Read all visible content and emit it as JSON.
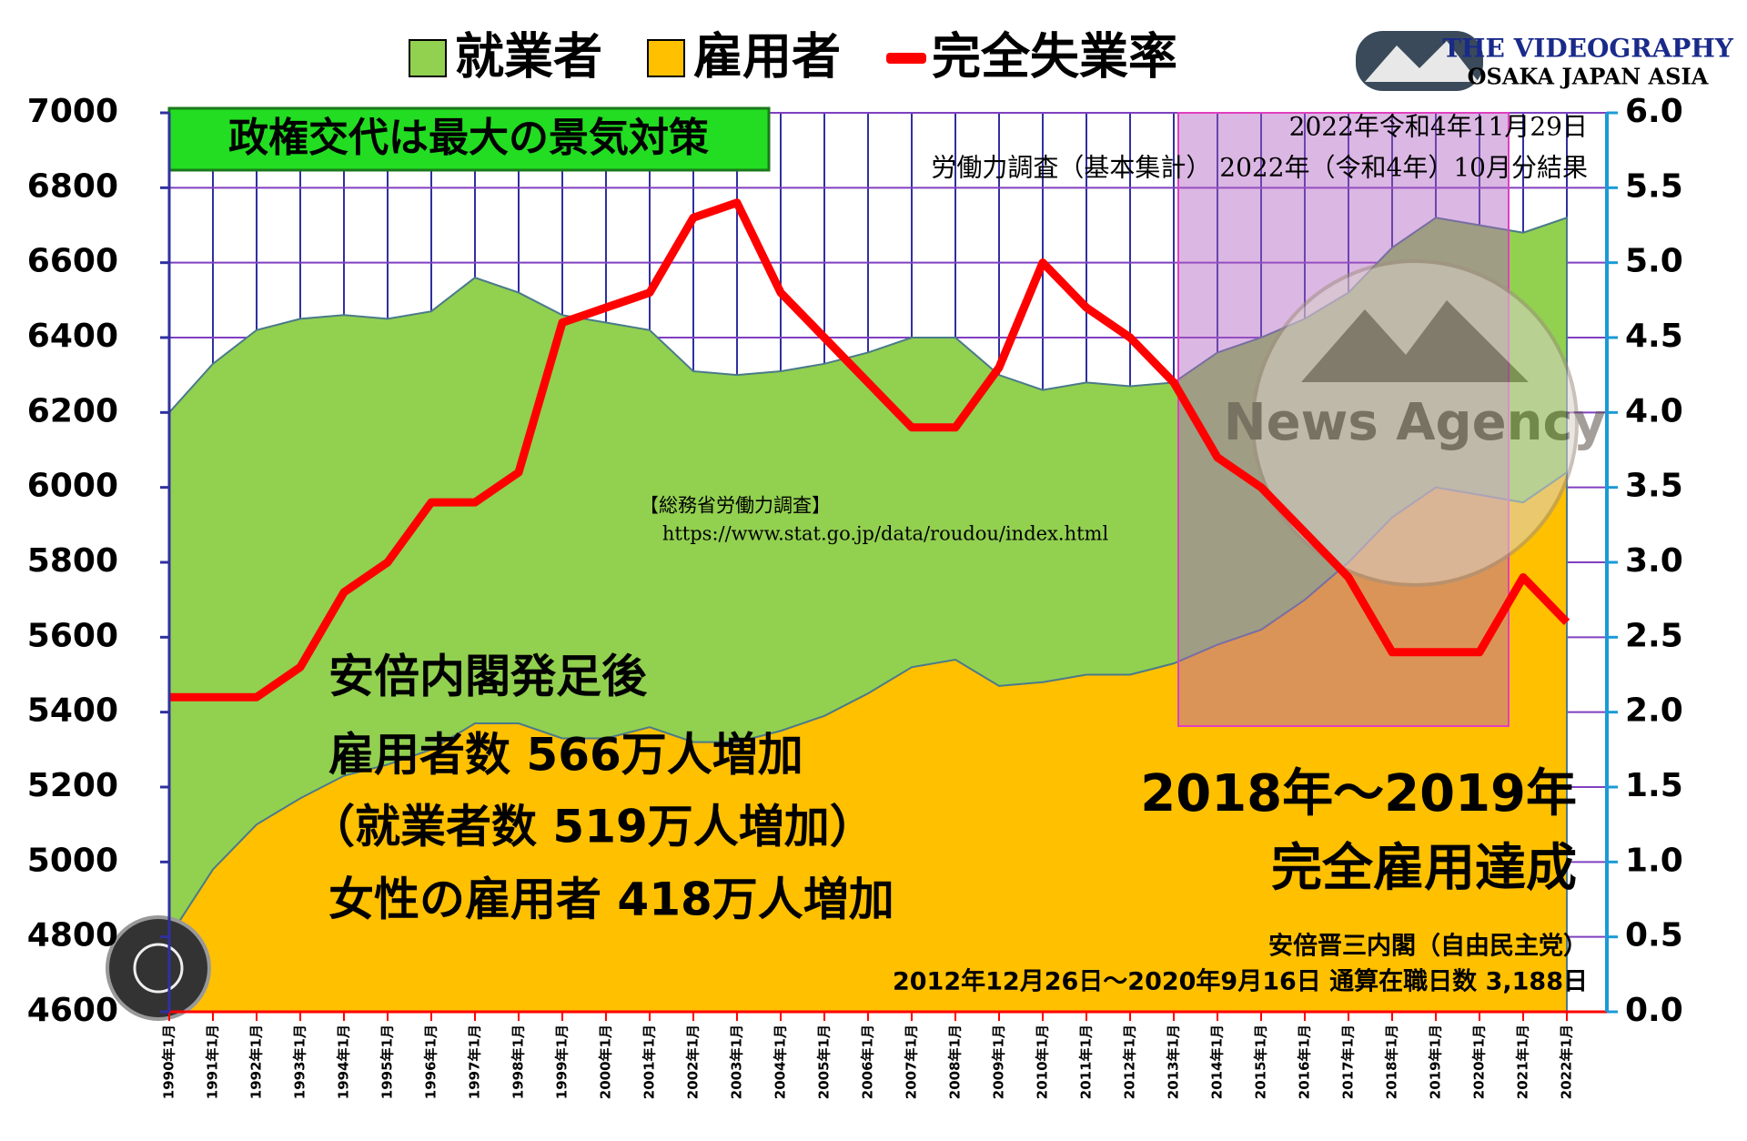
{
  "chart_data": {
    "type": "area",
    "categories": [
      "1990年1月",
      "1991年1月",
      "1992年1月",
      "1993年1月",
      "1994年1月",
      "1995年1月",
      "1996年1月",
      "1997年1月",
      "1998年1月",
      "1999年1月",
      "2000年1月",
      "2001年1月",
      "2002年1月",
      "2003年1月",
      "2004年1月",
      "2005年1月",
      "2006年1月",
      "2007年1月",
      "2008年1月",
      "2009年1月",
      "2010年1月",
      "2011年1月",
      "2012年1月",
      "2013年1月",
      "2014年1月",
      "2015年1月",
      "2016年1月",
      "2017年1月",
      "2018年1月",
      "2019年1月",
      "2020年1月",
      "2021年1月",
      "2022年1月"
    ],
    "series": [
      {
        "name": "就業者",
        "color": "#92d050",
        "values": [
          6200,
          6330,
          6420,
          6450,
          6460,
          6450,
          6470,
          6560,
          6520,
          6460,
          6440,
          6420,
          6310,
          6300,
          6310,
          6330,
          6360,
          6400,
          6400,
          6300,
          6260,
          6280,
          6270,
          6280,
          6360,
          6400,
          6450,
          6520,
          6640,
          6720,
          6700,
          6680,
          6720
        ]
      },
      {
        "name": "雇用者",
        "color": "#ffc000",
        "values": [
          4800,
          4980,
          5100,
          5170,
          5230,
          5260,
          5300,
          5370,
          5370,
          5330,
          5330,
          5360,
          5320,
          5320,
          5350,
          5390,
          5450,
          5520,
          5540,
          5470,
          5480,
          5500,
          5500,
          5530,
          5580,
          5620,
          5700,
          5800,
          5920,
          6000,
          5980,
          5960,
          6040
        ]
      },
      {
        "name": "完全失業率",
        "color": "#ff0000",
        "axis": "y2",
        "values": [
          2.1,
          2.1,
          2.1,
          2.3,
          2.8,
          3.0,
          3.4,
          3.4,
          3.6,
          4.6,
          4.7,
          4.8,
          5.3,
          5.4,
          4.8,
          4.5,
          4.2,
          3.9,
          3.9,
          4.3,
          5.0,
          4.7,
          4.5,
          4.2,
          3.7,
          3.5,
          3.2,
          2.9,
          2.4,
          2.4,
          2.4,
          2.9,
          2.6
        ]
      }
    ],
    "ylim": [
      4600,
      7000
    ],
    "yticks": [
      4600,
      4800,
      5000,
      5200,
      5400,
      5600,
      5800,
      6000,
      6200,
      6400,
      6600,
      6800,
      7000
    ],
    "y2lim": [
      0,
      6
    ],
    "y2ticks": [
      {
        "value": 0,
        "label": "0.0"
      },
      0.5,
      {
        "value": 1,
        "label": "1.0"
      },
      1.5,
      {
        "value": 2,
        "label": "2.0"
      },
      2.5,
      {
        "value": 3,
        "label": "3.0"
      },
      3.5,
      {
        "value": 4,
        "label": "4.0"
      },
      4.5,
      {
        "value": 5,
        "label": "5.0"
      },
      5.5,
      {
        "value": 6,
        "label": "6.0"
      }
    ],
    "grid": true,
    "annotations": {
      "slogan": "政権交代は最大の景気対策",
      "date": "2022年令和4年11月29日",
      "survey": "労働力調査（基本集計） 2022年（令和4年）10月分結果",
      "source": "【総務省労働力調査】",
      "url": "https://www.stat.go.jp/data/roudou/index.html",
      "abe_lines": [
        "安倍内閣発足後",
        "雇用者数 566万人増加",
        "（就業者数 519万人増加）",
        "女性の雇用者 418万人増加"
      ],
      "full_employment": [
        "2018年～2019年",
        "完全雇用達成"
      ],
      "cabinet": "安倍晋三内閣（自由民主党）",
      "term": "2012年12月26日～2020年9月16日  通算在職日数 3,188日",
      "logo": [
        "THE VIDEOGRAPHY",
        "OSAKA JAPAN ASIA"
      ],
      "watermark": "News Agency"
    }
  }
}
